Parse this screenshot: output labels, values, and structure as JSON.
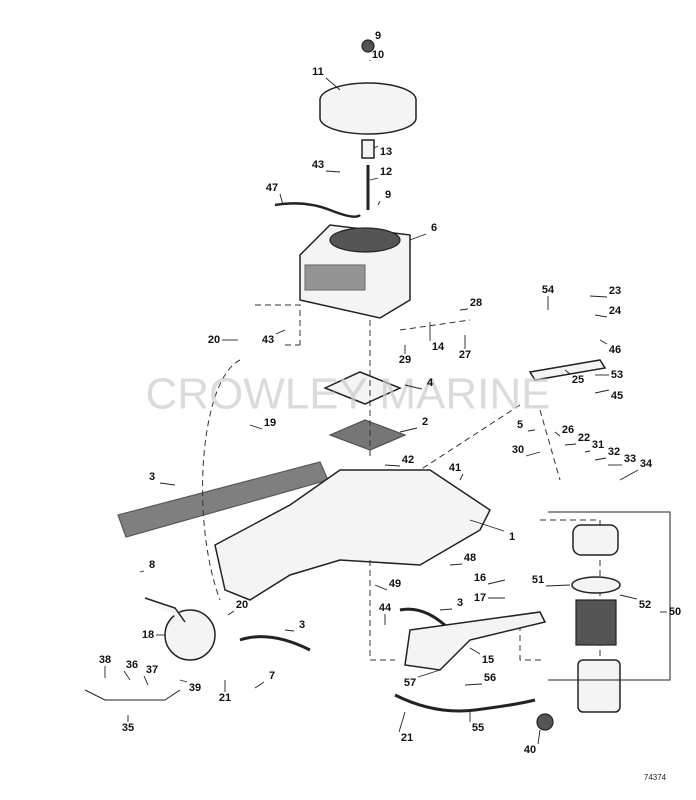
{
  "watermark": "CROWLEY MARINE",
  "drawing_number": "74374",
  "callouts": [
    "9",
    "10",
    "11",
    "13",
    "12",
    "43",
    "9",
    "47",
    "6",
    "54",
    "23",
    "24",
    "28",
    "20",
    "43",
    "14",
    "27",
    "29",
    "46",
    "25",
    "53",
    "45",
    "4",
    "5",
    "26",
    "2",
    "19",
    "22",
    "30",
    "31",
    "32",
    "33",
    "34",
    "3",
    "42",
    "41",
    "1",
    "8",
    "48",
    "16",
    "17",
    "51",
    "52",
    "50",
    "20",
    "3",
    "49",
    "44",
    "3",
    "18",
    "38",
    "36",
    "37",
    "39",
    "35",
    "7",
    "21",
    "57",
    "56",
    "15",
    "55",
    "21",
    "40"
  ]
}
